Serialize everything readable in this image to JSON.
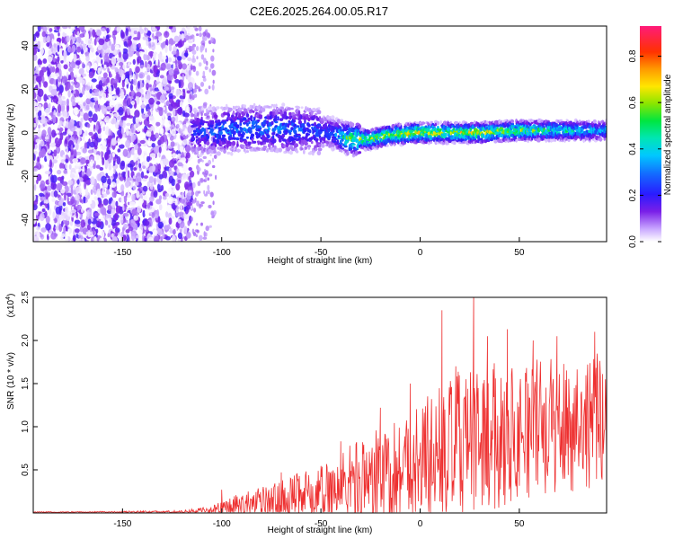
{
  "page_title": "C2E6.2025.264.00.05.R17",
  "chart_data": [
    {
      "type": "heatmap",
      "id": "spectrogram",
      "title": "C2E6.2025.264.00.05.R17",
      "xlabel": "Height of straight line (km)",
      "ylabel": "Frequency (Hz)",
      "xlim": [
        -195,
        94
      ],
      "ylim": [
        -50,
        49
      ],
      "xticks": [
        -150,
        -100,
        -50,
        0,
        50
      ],
      "yticks": [
        -40,
        -20,
        0,
        20,
        40
      ],
      "noise_region_x": [
        -195,
        -115
      ],
      "ridge": {
        "x": [
          -115,
          -100,
          -85,
          -70,
          -55,
          -45,
          -35,
          -25,
          -15,
          0,
          15,
          30,
          50,
          70,
          94
        ],
        "y": [
          0,
          1,
          2,
          2,
          1,
          0,
          -3,
          -3,
          -1,
          0,
          0,
          0,
          1,
          1,
          1
        ],
        "peak_amplitude": [
          0.3,
          0.4,
          0.4,
          0.4,
          0.35,
          0.35,
          0.75,
          0.75,
          0.8,
          0.85,
          0.8,
          0.85,
          0.75,
          0.6,
          0.45
        ]
      },
      "colorbar": {
        "label": "Normalized spectral amplitude",
        "range": [
          0,
          0.93
        ],
        "ticks": [
          0.0,
          0.2,
          0.4,
          0.6,
          0.8
        ]
      }
    },
    {
      "type": "line",
      "id": "snr",
      "xlabel": "Height of straight line (km)",
      "ylabel": "SNR (10 * v/v)",
      "scale_note_base": "(x10",
      "scale_note_exp": "4",
      "scale_note_close": ")",
      "xlim": [
        -195,
        94
      ],
      "ylim": [
        0,
        2.5
      ],
      "xticks": [
        -150,
        -100,
        -50,
        0,
        50
      ],
      "yticks": [
        0.5,
        1.0,
        1.5,
        2.0,
        2.5
      ],
      "color": "#ee3030",
      "envelope": {
        "x": [
          -195,
          -120,
          -105,
          -100,
          -90,
          -80,
          -70,
          -60,
          -50,
          -40,
          -30,
          -20,
          -10,
          0,
          10,
          20,
          30,
          40,
          50,
          60,
          70,
          80,
          94
        ],
        "base": [
          0.0,
          0.01,
          0.03,
          0.05,
          0.08,
          0.1,
          0.13,
          0.18,
          0.22,
          0.28,
          0.35,
          0.4,
          0.5,
          0.6,
          0.7,
          0.8,
          0.85,
          0.9,
          0.95,
          1.0,
          1.0,
          1.05,
          1.1
        ],
        "amp": [
          0.01,
          0.02,
          0.05,
          0.1,
          0.15,
          0.2,
          0.25,
          0.3,
          0.35,
          0.45,
          0.55,
          0.6,
          0.65,
          0.75,
          0.8,
          0.85,
          0.85,
          0.85,
          0.8,
          0.8,
          0.8,
          0.8,
          0.75
        ]
      },
      "spikes": [
        {
          "x": 11,
          "y": 2.35
        },
        {
          "x": 27,
          "y": 2.6
        },
        {
          "x": 34,
          "y": 2.05
        },
        {
          "x": 44,
          "y": 2.13
        },
        {
          "x": 57,
          "y": 2.0
        },
        {
          "x": 69,
          "y": 2.05
        },
        {
          "x": 88,
          "y": 2.1
        },
        {
          "x": 18,
          "y": 1.7
        },
        {
          "x": -5,
          "y": 1.5
        },
        {
          "x": -20,
          "y": 1.22
        },
        {
          "x": -40,
          "y": 0.83
        },
        {
          "x": -70,
          "y": 0.47
        },
        {
          "x": -100,
          "y": 0.27
        }
      ]
    }
  ]
}
